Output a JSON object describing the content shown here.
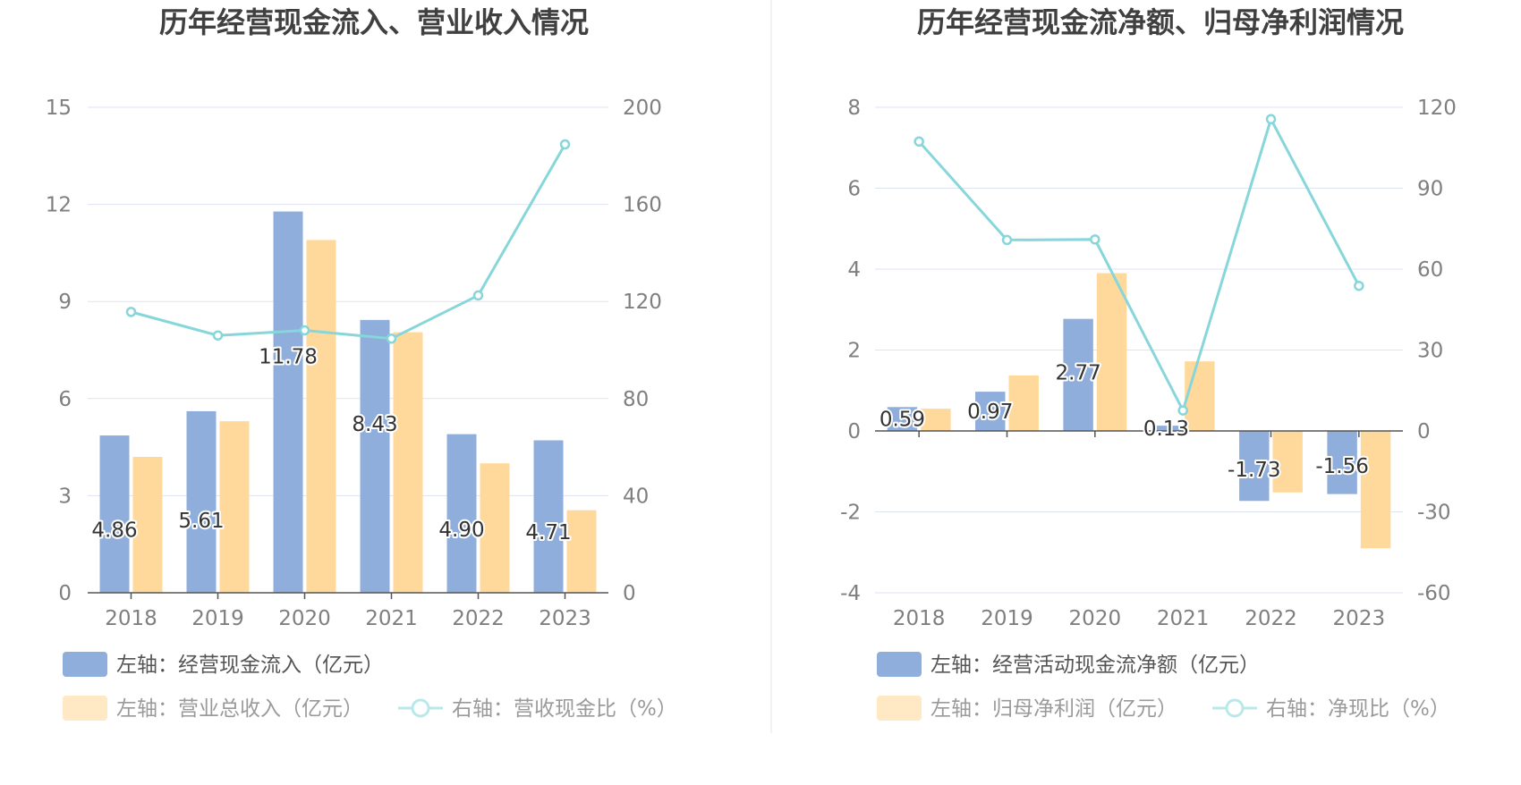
{
  "colors": {
    "bar_primary": "#8faedb",
    "bar_secondary": "#ffd99b",
    "line": "#86d6da",
    "grid": "#dde3f0",
    "axis": "#555555",
    "divider": "#e6e6e6"
  },
  "chart_data": [
    {
      "type": "bar",
      "title": "历年经营现金流入、营业收入情况",
      "categories": [
        "2018",
        "2019",
        "2020",
        "2021",
        "2022",
        "2023"
      ],
      "left_axis": {
        "ticks": [
          "0",
          "3",
          "6",
          "9",
          "12",
          "15"
        ],
        "ylim": [
          0,
          15
        ]
      },
      "right_axis": {
        "ticks": [
          "0",
          "40",
          "80",
          "120",
          "160",
          "200"
        ],
        "ylim": [
          0,
          200
        ]
      },
      "series": [
        {
          "name": "左轴：经营现金流入（亿元）",
          "kind": "bar",
          "axis": "left",
          "color": "#8faedb",
          "values": [
            4.86,
            5.61,
            11.78,
            8.43,
            4.9,
            4.71
          ],
          "labels": [
            "4.86",
            "5.61",
            "11.78",
            "8.43",
            "4.90",
            "4.71"
          ]
        },
        {
          "name": "左轴：营业总收入（亿元）",
          "kind": "bar",
          "axis": "left",
          "color": "#ffd99b",
          "values": [
            4.2,
            5.3,
            10.9,
            8.05,
            4.0,
            2.55
          ]
        },
        {
          "name": "右轴：营收现金比（%）",
          "kind": "line",
          "axis": "right",
          "color": "#86d6da",
          "values": [
            115.7,
            106.0,
            108.1,
            104.7,
            122.5,
            184.7
          ]
        }
      ],
      "legend": [
        {
          "label": "左轴：经营现金流入（亿元）",
          "kind": "bar",
          "color": "#8faedb",
          "muted": false
        },
        {
          "label": "左轴：营业总收入（亿元）",
          "kind": "bar",
          "color": "#ffe8c4",
          "muted": true
        },
        {
          "label": "右轴：营收现金比（%）",
          "kind": "line",
          "color": "#b9e8ea",
          "muted": true
        }
      ],
      "grid": true,
      "legend_position": "bottom"
    },
    {
      "type": "bar",
      "title": "历年经营现金流净额、归母净利润情况",
      "categories": [
        "2018",
        "2019",
        "2020",
        "2021",
        "2022",
        "2023"
      ],
      "left_axis": {
        "ticks": [
          "-4",
          "-2",
          "0",
          "2",
          "4",
          "6",
          "8"
        ],
        "ylim": [
          -4,
          8
        ]
      },
      "right_axis": {
        "ticks": [
          "-60",
          "-30",
          "0",
          "30",
          "60",
          "90",
          "120"
        ],
        "ylim": [
          -60,
          120
        ]
      },
      "series": [
        {
          "name": "左轴：经营活动现金流净额（亿元）",
          "kind": "bar",
          "axis": "left",
          "color": "#8faedb",
          "values": [
            0.59,
            0.97,
            2.77,
            0.13,
            -1.73,
            -1.56
          ],
          "labels": [
            "0.59",
            "0.97",
            "2.77",
            "0.13",
            "-1.73",
            "-1.56"
          ]
        },
        {
          "name": "左轴：归母净利润（亿元）",
          "kind": "bar",
          "axis": "left",
          "color": "#ffd99b",
          "values": [
            0.55,
            1.37,
            3.9,
            1.72,
            -1.52,
            -2.9
          ]
        },
        {
          "name": "右轴：净现比（%）",
          "kind": "line",
          "axis": "right",
          "color": "#86d6da",
          "values": [
            107.3,
            70.8,
            71.0,
            7.6,
            115.6,
            53.8
          ]
        }
      ],
      "legend": [
        {
          "label": "左轴：经营活动现金流净额（亿元）",
          "kind": "bar",
          "color": "#8faedb",
          "muted": false
        },
        {
          "label": "左轴：归母净利润（亿元）",
          "kind": "bar",
          "color": "#ffe8c4",
          "muted": true
        },
        {
          "label": "右轴：净现比（%）",
          "kind": "line",
          "color": "#b9e8ea",
          "muted": true
        }
      ],
      "grid": true,
      "legend_position": "bottom"
    }
  ]
}
